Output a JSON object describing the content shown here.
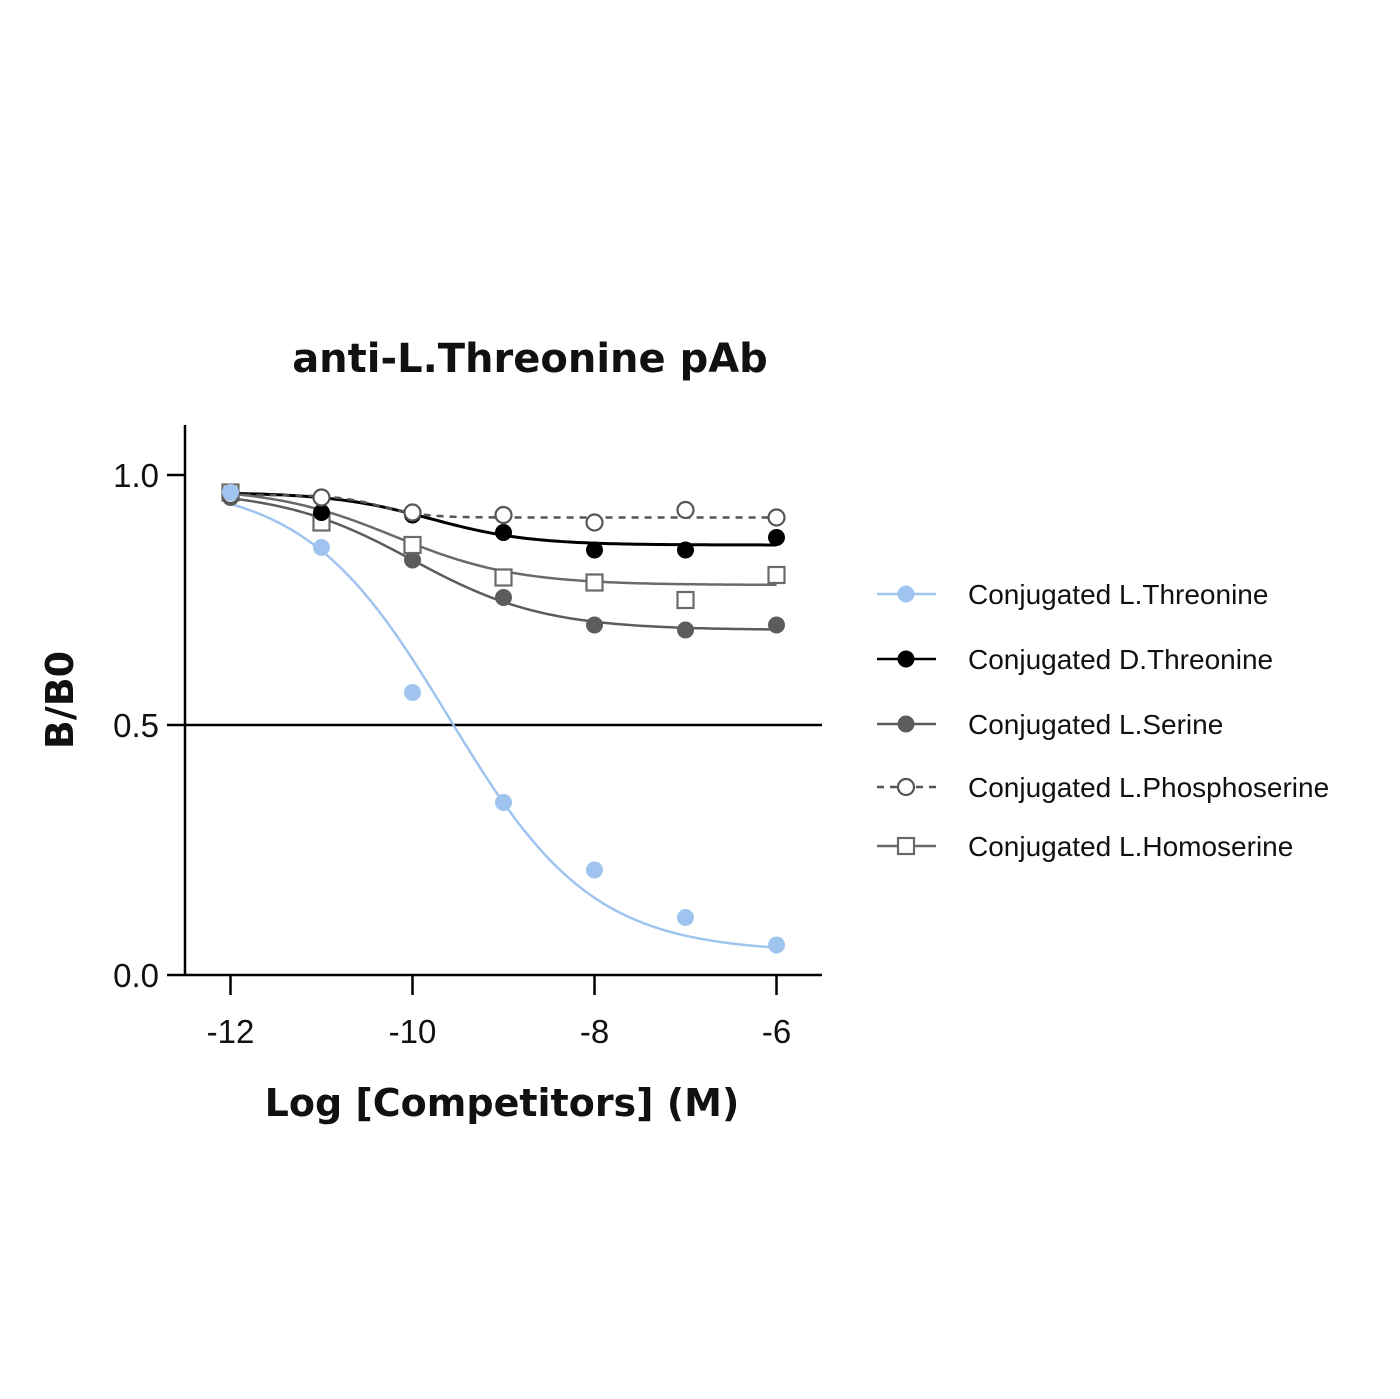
{
  "chart_data": {
    "type": "line",
    "title": "anti-L.Threonine pAb",
    "xlabel": "Log [Competitors] (M)",
    "ylabel": "B/B0",
    "xlim": [
      -12.5,
      -5.5
    ],
    "ylim": [
      0.0,
      1.1
    ],
    "x_ticks": [
      -12,
      -10,
      -8,
      -6
    ],
    "x_tick_labels": [
      "-12",
      "-10",
      "-8",
      "-6"
    ],
    "y_ticks": [
      0.0,
      0.5,
      1.0
    ],
    "y_tick_labels": [
      "0.0",
      "0.5",
      "1.0"
    ],
    "reference_line": 0.5,
    "legend_position": "right",
    "x": [
      -12,
      -11,
      -10,
      -9,
      -8,
      -7,
      -6
    ],
    "series": [
      {
        "name": "Conjugated L.Threonine",
        "color": "#9fc4ef",
        "marker": "filled-circle",
        "line_style": "solid",
        "values": [
          0.965,
          0.855,
          0.565,
          0.345,
          0.21,
          0.115,
          0.06
        ],
        "fit": {
          "bottom": 0.045,
          "top": 0.985,
          "log_ic50": -9.6,
          "hill": 0.55
        }
      },
      {
        "name": "Conjugated D.Threonine",
        "color": "#000000",
        "marker": "filled-circle",
        "line_style": "solid",
        "values": [
          0.96,
          0.925,
          0.92,
          0.885,
          0.85,
          0.85,
          0.875
        ],
        "fit": {
          "bottom": 0.86,
          "top": 0.965,
          "log_ic50": -9.8,
          "hill": 0.8
        }
      },
      {
        "name": "Conjugated L.Serine",
        "color": "#5c5c5c",
        "marker": "filled-circle",
        "line_style": "solid",
        "values": [
          0.955,
          0.905,
          0.83,
          0.755,
          0.7,
          0.69,
          0.7
        ],
        "fit": {
          "bottom": 0.69,
          "top": 0.97,
          "log_ic50": -10.0,
          "hill": 0.6
        }
      },
      {
        "name": "Conjugated L.Phosphoserine",
        "color": "#555555",
        "marker": "open-circle",
        "line_style": "dashed",
        "values": [
          0.96,
          0.955,
          0.925,
          0.92,
          0.905,
          0.93,
          0.915
        ],
        "fit": {
          "bottom": 0.915,
          "top": 0.96,
          "log_ic50": -10.35,
          "hill": 1.8
        }
      },
      {
        "name": "Conjugated L.Homoserine",
        "color": "#6a6a6a",
        "marker": "open-square",
        "line_style": "solid",
        "values": [
          0.965,
          0.905,
          0.86,
          0.795,
          0.785,
          0.75,
          0.8
        ],
        "fit": {
          "bottom": 0.78,
          "top": 0.975,
          "log_ic50": -10.2,
          "hill": 0.65
        }
      }
    ]
  }
}
